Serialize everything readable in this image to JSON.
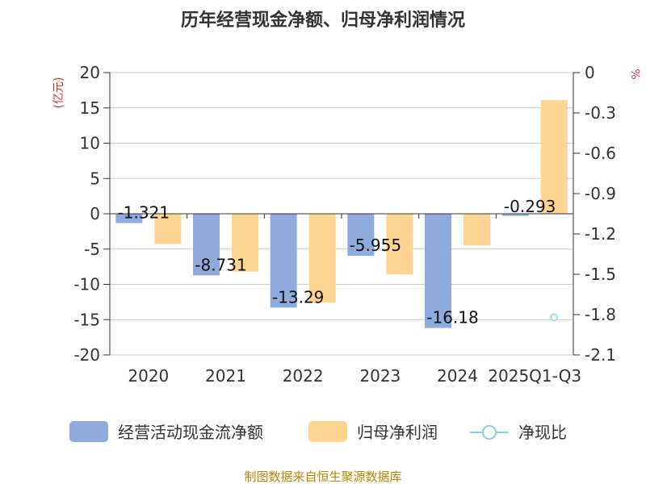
{
  "chart_data": {
    "type": "bar",
    "title": "历年经营现金净额、归母净利润情况",
    "categories": [
      "2020",
      "2021",
      "2022",
      "2023",
      "2024",
      "2025Q1-Q3"
    ],
    "left_unit": "(亿元)",
    "right_unit": "%",
    "ylim": [
      -20,
      20
    ],
    "yticks": [
      20,
      15,
      10,
      5,
      0,
      -5,
      -10,
      -15,
      -20
    ],
    "y2lim": [
      -2.1,
      0
    ],
    "y2ticks": [
      0,
      -0.3,
      -0.6,
      -0.9,
      -1.2,
      -1.5,
      -1.8,
      -2.1
    ],
    "series": [
      {
        "name": "经营活动现金流净额",
        "color": "#8faadc",
        "values": [
          -1.32,
          -8.73,
          -13.29,
          -5.95,
          -16.18,
          -0.29
        ],
        "labels": [
          "-1.321",
          "-8.731",
          "-13.29",
          "-5.955",
          "-16.18",
          "-0.293"
        ]
      },
      {
        "name": "归母净利润",
        "color": "#ffd591",
        "values": [
          -4.3,
          -8.2,
          -12.6,
          -8.6,
          -4.5,
          16.1
        ]
      },
      {
        "name": "净现比",
        "color": "#8dd3e0",
        "axis": "right",
        "values": [
          null,
          null,
          null,
          null,
          null,
          -1.82
        ]
      }
    ]
  },
  "source": "制图数据来自恒生聚源数据库"
}
